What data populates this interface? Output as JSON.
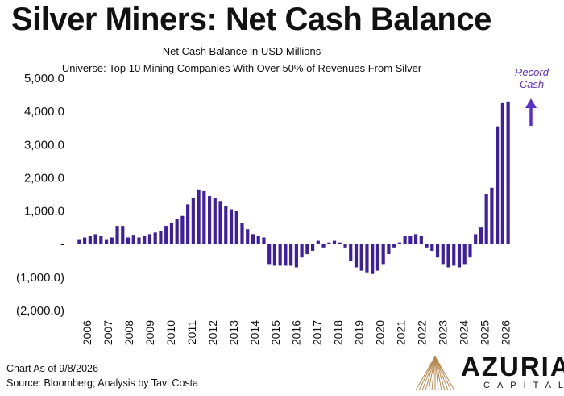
{
  "chart_data": {
    "type": "bar",
    "title": "Silver Miners: Net Cash Balance",
    "subtitle": "Net Cash Balance in USD Millions",
    "subtitle2": "Universe: Top 10 Mining Companies With Over 50% of Revenues From Silver",
    "xlabel": "",
    "ylabel": "",
    "ylim": [
      -2000,
      5000
    ],
    "y_ticks": [
      {
        "value": 5000,
        "label": "5,000.0"
      },
      {
        "value": 4000,
        "label": "4,000.0"
      },
      {
        "value": 3000,
        "label": "3,000.0"
      },
      {
        "value": 2000,
        "label": "2,000.0"
      },
      {
        "value": 1000,
        "label": "1,000.0"
      },
      {
        "value": 0,
        "label": "-"
      },
      {
        "value": -1000,
        "label": "(1,000.0)"
      },
      {
        "value": -2000,
        "label": "(2,000.0)"
      }
    ],
    "x_ticks": [
      "2006",
      "2007",
      "2008",
      "2009",
      "2010",
      "2011",
      "2012",
      "2013",
      "2014",
      "2015",
      "2016",
      "2017",
      "2018",
      "2019",
      "2020",
      "2021",
      "2022",
      "2023",
      "2024",
      "2025",
      "2026"
    ],
    "x_start": 2006,
    "x_end": 2026.75,
    "bar_color": "#3d1fa3",
    "values": [
      150,
      200,
      250,
      300,
      250,
      150,
      200,
      550,
      550,
      200,
      280,
      200,
      250,
      300,
      350,
      400,
      550,
      650,
      750,
      850,
      1200,
      1400,
      1650,
      1600,
      1450,
      1400,
      1300,
      1150,
      1050,
      1000,
      650,
      450,
      300,
      250,
      200,
      -600,
      -650,
      -650,
      -650,
      -650,
      -700,
      -400,
      -300,
      -200,
      100,
      -100,
      50,
      100,
      50,
      -100,
      -500,
      -700,
      -800,
      -850,
      -900,
      -800,
      -600,
      -300,
      -100,
      50,
      250,
      250,
      300,
      250,
      -100,
      -200,
      -400,
      -600,
      -700,
      -650,
      -700,
      -600,
      -400,
      300,
      500,
      1500,
      1700,
      3550,
      4250,
      4300
    ],
    "annotation": "Record Cash",
    "footnote1": "Chart As of 9/8/2026",
    "footnote2": "Source: Bloomberg; Analysis by Tavi Costa"
  },
  "brand": {
    "name": "AZURIA",
    "sub": "CAPITAL"
  },
  "colors": {
    "bars": "#3d1fa3",
    "annotation": "#5b2fc9"
  }
}
